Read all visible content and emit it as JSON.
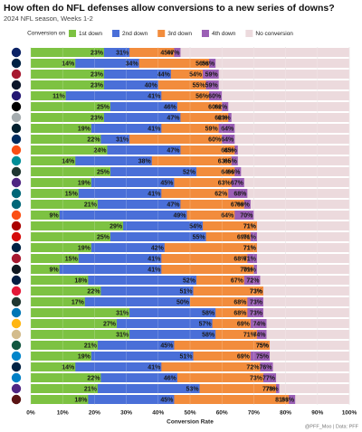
{
  "chart_data": {
    "type": "bar",
    "title": "How often do NFL defenses allow conversions to a new series of downs?",
    "subtitle": "2024 NFL season, Weeks 1-2",
    "legend_title": "Conversion on",
    "x_label": "Conversion Rate",
    "caption": "@PFF_Moo | Data: PFF",
    "xlim": [
      0,
      100
    ],
    "xticks": [
      {
        "value": 0,
        "label": "0%"
      },
      {
        "value": 10,
        "label": "10%"
      },
      {
        "value": 20,
        "label": "20%"
      },
      {
        "value": 30,
        "label": "30%"
      },
      {
        "value": 40,
        "label": "40%"
      },
      {
        "value": 50,
        "label": "50%"
      },
      {
        "value": 60,
        "label": "60%"
      },
      {
        "value": 70,
        "label": "70%"
      },
      {
        "value": 80,
        "label": "80%"
      },
      {
        "value": 90,
        "label": "90%"
      },
      {
        "value": 100,
        "label": "100%"
      }
    ],
    "grid": true,
    "series": [
      {
        "name": "No conversion",
        "color": "#ecdadd",
        "values": [
          100,
          100,
          100,
          100,
          100,
          100,
          100,
          100,
          100,
          100,
          100,
          100,
          100,
          100,
          100,
          100,
          100,
          100,
          100,
          100,
          100,
          100,
          100,
          100,
          100,
          100,
          100,
          100,
          100,
          100,
          100,
          100,
          100
        ]
      },
      {
        "name": "4th down",
        "color": "#9b5fb5",
        "values": [
          47,
          58,
          59,
          59,
          60,
          62,
          63,
          64,
          64,
          65,
          65,
          66,
          67,
          68,
          69,
          70,
          71,
          71,
          71,
          71,
          71,
          72,
          73,
          73,
          73,
          74,
          74,
          75,
          75,
          76,
          77,
          78,
          83
        ],
        "value_labels": [
          "47%",
          "58%",
          "59%",
          "59%",
          "60%",
          "62%",
          "63%",
          "64%",
          "64%",
          "65%",
          "65%",
          "66%",
          "67%",
          "68%",
          "69%",
          "70%",
          "71%",
          "71%",
          "71%",
          "71%",
          "71%",
          "72%",
          "73%",
          "73%",
          "73%",
          "74%",
          "74%",
          "75%",
          "75%",
          "76%",
          "77%",
          "78%",
          "83%"
        ]
      },
      {
        "name": "3rd down",
        "color": "#f28c3c",
        "values": [
          45,
          56,
          54,
          55,
          56,
          60,
          62,
          59,
          60,
          64,
          63,
          64,
          63,
          62,
          67,
          64,
          71,
          69,
          71,
          68,
          70,
          67,
          73,
          68,
          68,
          69,
          71,
          75,
          69,
          72,
          73,
          77,
          81
        ],
        "value_labels": [
          "45%",
          "56%",
          "54%",
          "55%",
          "56%",
          "60%",
          "62%",
          "59%",
          "60%",
          "64%",
          "63%",
          "64%",
          "63%",
          "62%",
          "67%",
          "64%",
          "71%",
          "69%",
          "71%",
          "68%",
          "70%",
          "67%",
          "73%",
          "68%",
          "68%",
          "69%",
          "71%",
          "75%",
          "69%",
          "72%",
          "73%",
          "77%",
          "81%"
        ]
      },
      {
        "name": "2nd down",
        "color": "#4a6fd8",
        "values": [
          31,
          34,
          44,
          40,
          41,
          46,
          47,
          41,
          31,
          47,
          38,
          52,
          45,
          41,
          47,
          49,
          54,
          55,
          42,
          41,
          41,
          52,
          51,
          50,
          58,
          57,
          58,
          45,
          51,
          41,
          46,
          53,
          45
        ],
        "value_labels": [
          "31%",
          "34%",
          "44%",
          "40%",
          "41%",
          "46%",
          "47%",
          "41%",
          "31%",
          "47%",
          "38%",
          "52%",
          "45%",
          "41%",
          "47%",
          "49%",
          "54%",
          "55%",
          "42%",
          "41%",
          "41%",
          "52%",
          "51%",
          "50%",
          "58%",
          "57%",
          "58%",
          "45%",
          "51%",
          "41%",
          "46%",
          "53%",
          "45%"
        ]
      },
      {
        "name": "1st down",
        "color": "#7dc242",
        "values": [
          23,
          14,
          23,
          23,
          11,
          25,
          23,
          19,
          22,
          24,
          14,
          25,
          19,
          15,
          21,
          9,
          29,
          25,
          19,
          15,
          9,
          18,
          22,
          17,
          31,
          27,
          31,
          21,
          19,
          14,
          22,
          21,
          18
        ],
        "value_labels": [
          "23%",
          "14%",
          "23%",
          "23%",
          "11%",
          "25%",
          "23%",
          "19%",
          "22%",
          "24%",
          "14%",
          "25%",
          "19%",
          "15%",
          "21%",
          "9%",
          "29%",
          "25%",
          "19%",
          "15%",
          "9%",
          "18%",
          "22%",
          "17%",
          "31%",
          "27%",
          "31%",
          "21%",
          "19%",
          "14%",
          "22%",
          "21%",
          "18%"
        ]
      }
    ]
  }
}
